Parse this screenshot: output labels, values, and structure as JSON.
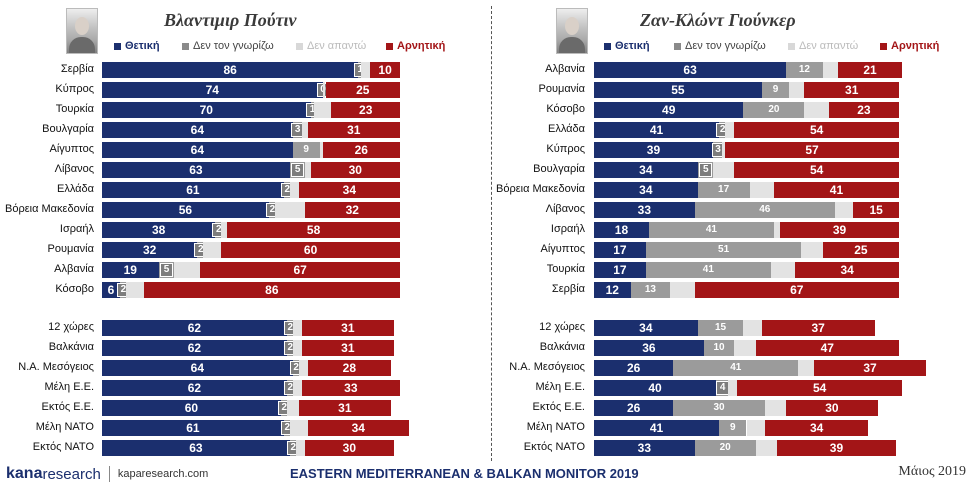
{
  "colors": {
    "positive": "#1b2f6e",
    "dont_know": "#9b9b9b",
    "no_answer": "#e3e3e3",
    "negative": "#a31517"
  },
  "legend": {
    "positive": "Θετική",
    "dont_know": "Δεν τον γνωρίζω",
    "no_answer": "Δεν απαντώ",
    "negative": "Αρνητική"
  },
  "footer": {
    "brand_k": "kana",
    "brand_r": "research",
    "url": "kaparesearch.com",
    "title": "EASTERN MEDITERRANEAN & BALKAN MONITOR 2019",
    "date": "Μάιος 2019"
  },
  "chart_data": [
    {
      "type": "bar",
      "stacked": true,
      "orientation": "horizontal",
      "title": "Βλαντιμιρ Πούτιν",
      "series_names": [
        "Θετική",
        "Δεν τον γνωρίζω",
        "Δεν απαντώ",
        "Αρνητική"
      ],
      "rows": [
        {
          "label": "Σερβία",
          "values": [
            86,
            1,
            3,
            10
          ]
        },
        {
          "label": "Κύπρος",
          "values": [
            74,
            0,
            1,
            25
          ]
        },
        {
          "label": "Τουρκία",
          "values": [
            70,
            1,
            6,
            23
          ]
        },
        {
          "label": "Βουλγαρία",
          "values": [
            64,
            3,
            2,
            31
          ]
        },
        {
          "label": "Αίγυπτος",
          "values": [
            64,
            9,
            1,
            26
          ]
        },
        {
          "label": "Λίβανος",
          "values": [
            63,
            5,
            2,
            30
          ]
        },
        {
          "label": "Ελλάδα",
          "values": [
            61,
            2,
            3,
            34
          ]
        },
        {
          "label": "Βόρεια Μακεδονία",
          "values": [
            56,
            2,
            10,
            32
          ]
        },
        {
          "label": "Ισραήλ",
          "values": [
            38,
            2,
            2,
            58
          ]
        },
        {
          "label": "Ρουμανία",
          "values": [
            32,
            2,
            6,
            60
          ]
        },
        {
          "label": "Αλβανία",
          "values": [
            19,
            5,
            9,
            67
          ]
        },
        {
          "label": "Κόσοβο",
          "values": [
            6,
            2,
            6,
            86
          ]
        }
      ],
      "groups": [
        {
          "label": "12 χώρες",
          "values": [
            62,
            2,
            3,
            31
          ]
        },
        {
          "label": "Βαλκάνια",
          "values": [
            62,
            2,
            3,
            31
          ]
        },
        {
          "label": "Ν.Α. Μεσόγειος",
          "values": [
            64,
            2,
            3,
            28
          ]
        },
        {
          "label": "Μέλη Ε.Ε.",
          "values": [
            62,
            2,
            3,
            33
          ]
        },
        {
          "label": "Εκτός Ε.Ε.",
          "values": [
            60,
            2,
            4,
            31
          ]
        },
        {
          "label": "Μέλη ΝΑΤΟ",
          "values": [
            61,
            2,
            6,
            34
          ]
        },
        {
          "label": "Εκτός ΝΑΤΟ",
          "values": [
            63,
            2,
            3,
            30
          ]
        }
      ]
    },
    {
      "type": "bar",
      "stacked": true,
      "orientation": "horizontal",
      "title": "Ζαν-Κλώντ Γιούνκερ",
      "series_names": [
        "Θετική",
        "Δεν τον γνωρίζω",
        "Δεν απαντώ",
        "Αρνητική"
      ],
      "rows": [
        {
          "label": "Αλβανία",
          "values": [
            63,
            12,
            5,
            21
          ]
        },
        {
          "label": "Ρουμανία",
          "values": [
            55,
            9,
            5,
            31
          ]
        },
        {
          "label": "Κόσοβο",
          "values": [
            49,
            20,
            8,
            23
          ]
        },
        {
          "label": "Ελλάδα",
          "values": [
            41,
            2,
            3,
            54
          ]
        },
        {
          "label": "Κύπρος",
          "values": [
            39,
            3,
            1,
            57
          ]
        },
        {
          "label": "Βουλγαρία",
          "values": [
            34,
            5,
            7,
            54
          ]
        },
        {
          "label": "Βόρεια Μακεδονία",
          "values": [
            34,
            17,
            8,
            41
          ]
        },
        {
          "label": "Λίβανος",
          "values": [
            33,
            46,
            6,
            15
          ]
        },
        {
          "label": "Ισραήλ",
          "values": [
            18,
            41,
            2,
            39
          ]
        },
        {
          "label": "Αίγυπτος",
          "values": [
            17,
            51,
            7,
            25
          ]
        },
        {
          "label": "Τουρκία",
          "values": [
            17,
            41,
            8,
            34
          ]
        },
        {
          "label": "Σερβία",
          "values": [
            12,
            13,
            8,
            67
          ]
        }
      ],
      "groups": [
        {
          "label": "12 χώρες",
          "values": [
            34,
            15,
            6,
            37
          ]
        },
        {
          "label": "Βαλκάνια",
          "values": [
            36,
            10,
            7,
            47
          ]
        },
        {
          "label": "Ν.Α. Μεσόγειος",
          "values": [
            26,
            41,
            5,
            37
          ]
        },
        {
          "label": "Μέλη Ε.Ε.",
          "values": [
            40,
            4,
            3,
            54
          ]
        },
        {
          "label": "Εκτός Ε.Ε.",
          "values": [
            26,
            30,
            7,
            30
          ]
        },
        {
          "label": "Μέλη ΝΑΤΟ",
          "values": [
            41,
            9,
            6,
            34
          ]
        },
        {
          "label": "Εκτός ΝΑΤΟ",
          "values": [
            33,
            20,
            7,
            39
          ]
        }
      ]
    }
  ]
}
